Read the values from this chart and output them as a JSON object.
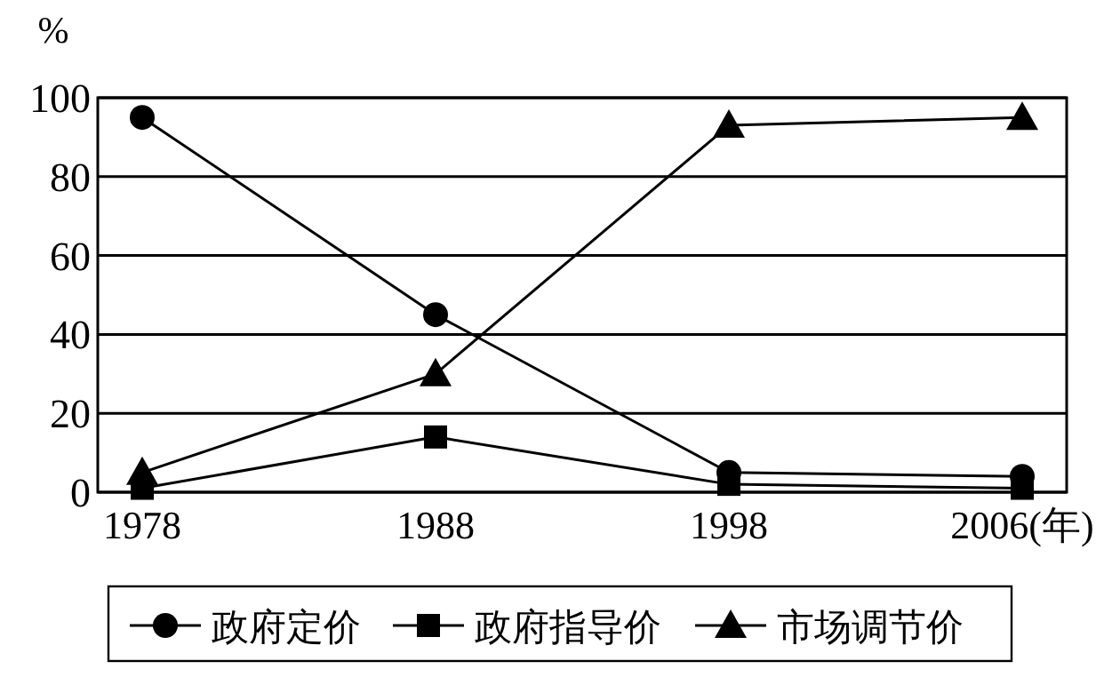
{
  "chart_data": {
    "type": "line",
    "ylabel": "%",
    "categories": [
      "1978",
      "1988",
      "1998",
      "2006(年)"
    ],
    "ylim": [
      0,
      100
    ],
    "yticks": [
      0,
      20,
      40,
      60,
      80,
      100
    ],
    "grid": "y",
    "legend": "bottom",
    "series": [
      {
        "name": "政府定价",
        "color": "#000000",
        "marker": "circle",
        "values": [
          95,
          45,
          5,
          4
        ]
      },
      {
        "name": "政府指导价",
        "color": "#000000",
        "marker": "square",
        "values": [
          1,
          14,
          2,
          1
        ]
      },
      {
        "name": "市场调节价",
        "color": "#000000",
        "marker": "triangle",
        "values": [
          5,
          30,
          93,
          95
        ]
      }
    ]
  }
}
